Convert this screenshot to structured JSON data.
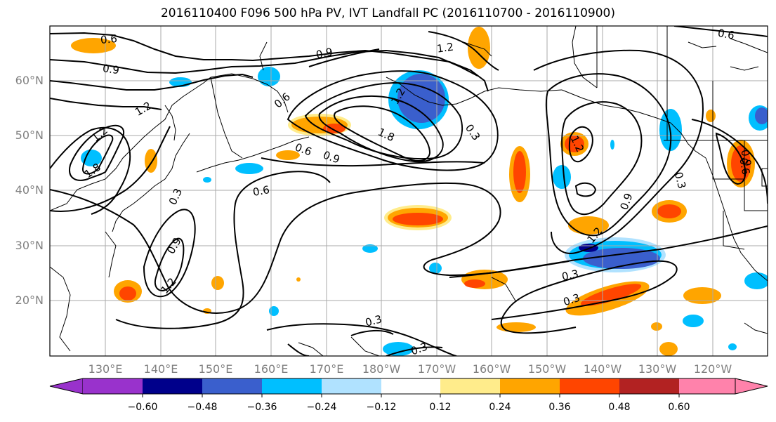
{
  "title": "2016110400 F096 500 hPa PV, IVT Landfall PC (2016110700 - 2016110900)",
  "lat_labels": [
    "60°N",
    "50°N",
    "40°N",
    "30°N",
    "20°N"
  ],
  "lon_labels": [
    "130°E",
    "140°E",
    "150°E",
    "160°E",
    "170°E",
    "180°W",
    "170°W",
    "160°W",
    "150°W",
    "140°W",
    "130°W",
    "120°W"
  ],
  "contour_labels": [
    "0.6",
    "0.9",
    "1.2",
    "0.6",
    "1.2",
    "1.8",
    "0.3",
    "0.9",
    "1.2",
    "0.6",
    "0.9",
    "1.8",
    "1.2",
    "0.3",
    "0.6",
    "0.9",
    "1.2",
    "0.9",
    "0.3",
    "0.3",
    "0.3",
    "0.3",
    "0.3",
    "0.6",
    "0.6",
    "1.2",
    "0.9",
    "1.2"
  ],
  "colorbar": {
    "colors": [
      "#9932cc",
      "#00008b",
      "#3a5fcd",
      "#00bfff",
      "#b0e2ff",
      "#ffffff",
      "#ffec8b",
      "#ffa500",
      "#ff4500",
      "#b22222",
      "#ff82ab"
    ],
    "tick_labels": [
      "−0.60",
      "−0.48",
      "−0.36",
      "−0.24",
      "−0.12",
      "0.12",
      "0.24",
      "0.36",
      "0.48",
      "0.60"
    ]
  }
}
